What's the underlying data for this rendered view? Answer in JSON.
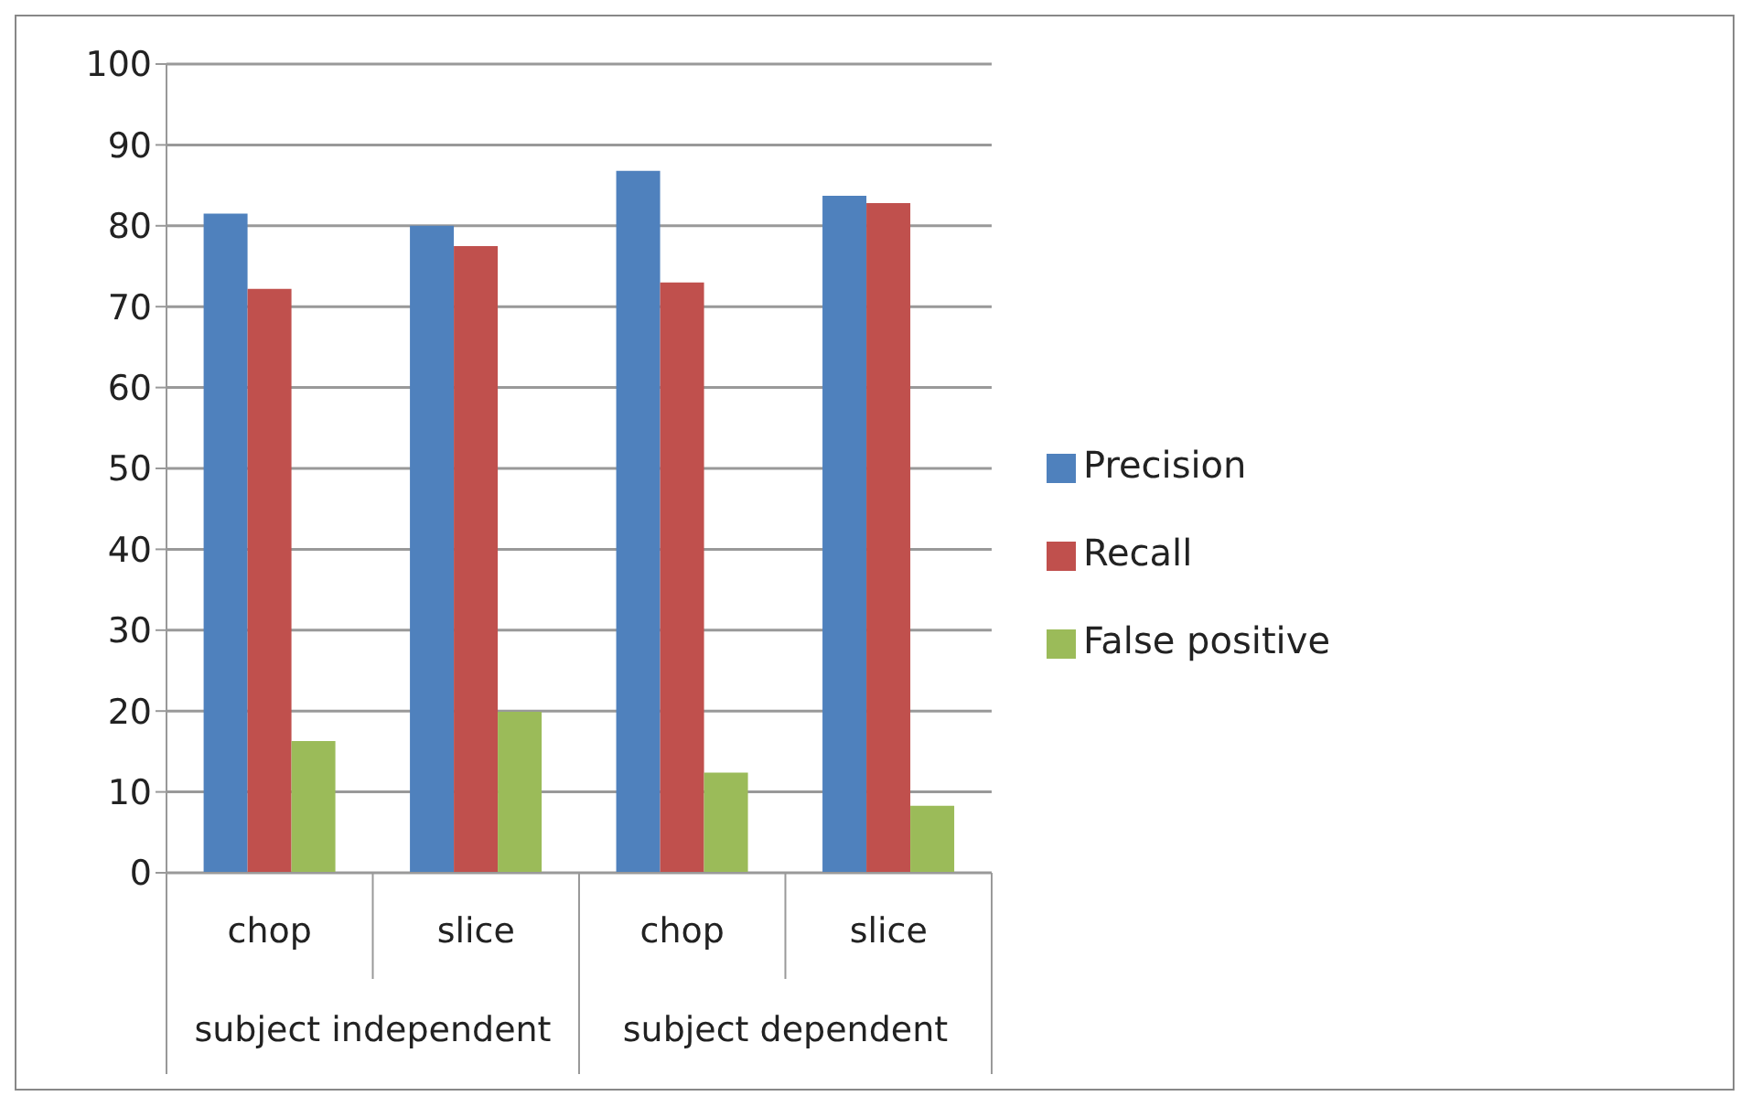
{
  "chart_data": {
    "type": "bar",
    "categories": [
      "chop",
      "slice",
      "chop",
      "slice"
    ],
    "annotations": [
      "subject independent",
      "subject dependent"
    ],
    "series": [
      {
        "name": "Precision",
        "color": "#4f81bd",
        "values": [
          81.5,
          80,
          86.8,
          83.7
        ]
      },
      {
        "name": "Recall",
        "color": "#c0504d",
        "values": [
          72.2,
          77.5,
          73,
          82.8
        ]
      },
      {
        "name": "False positive",
        "color": "#9bbb59",
        "values": [
          16.3,
          19.9,
          12.4,
          8.3
        ]
      }
    ],
    "ylim": [
      0,
      100
    ],
    "yticks": [
      0,
      10,
      20,
      30,
      40,
      50,
      60,
      70,
      80,
      90,
      100
    ],
    "grid": "y",
    "legend": "right"
  }
}
